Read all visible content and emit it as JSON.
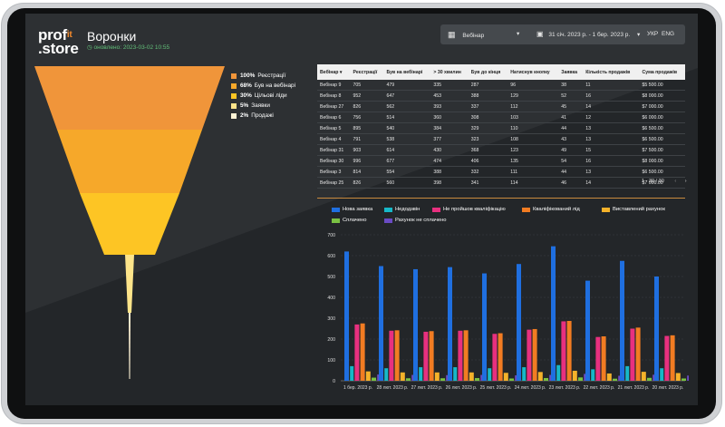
{
  "app": {
    "logo_line1": "prof",
    "logo_it": "it",
    "logo_line2": ".store",
    "title": "Воронки",
    "updated": "оновлено: 2023-03-02 10:55"
  },
  "filters": {
    "webinar_label": "Вебінар",
    "date_range": "31 січ. 2023 р. - 1 бер. 2023 р.",
    "lang_ukr": "УКР",
    "lang_eng": "ENG"
  },
  "funnel": {
    "stages": [
      {
        "percent": "100%",
        "label": "Реєстрації",
        "value": 100,
        "color": "#f0953a"
      },
      {
        "percent": "68%",
        "label": "Був на вебінарі",
        "value": 68,
        "color": "#f6a82a"
      },
      {
        "percent": "30%",
        "label": "Цільові ліди",
        "value": 30,
        "color": "#fdc524"
      },
      {
        "percent": "5%",
        "label": "Заявки",
        "value": 5,
        "color": "#fde48a"
      },
      {
        "percent": "2%",
        "label": "Продажі",
        "value": 2,
        "color": "#fff4d6"
      }
    ]
  },
  "table": {
    "headers": [
      "Вебінар",
      "Реєстрації",
      "Був на вебінарі",
      "> 30 хвилин",
      "Був до кінця",
      "Натиснув кнопку",
      "Заявка",
      "Кількість продажів",
      "Сума продажів"
    ],
    "rows": [
      [
        "Вебінар 9",
        "705",
        "479",
        "335",
        "287",
        "96",
        "38",
        "11",
        "$5 500.00"
      ],
      [
        "Вебінар 8",
        "952",
        "647",
        "453",
        "388",
        "129",
        "52",
        "16",
        "$8 000.00"
      ],
      [
        "Вебінар 27",
        "826",
        "562",
        "393",
        "337",
        "112",
        "45",
        "14",
        "$7 000.00"
      ],
      [
        "Вебінар 6",
        "756",
        "514",
        "360",
        "308",
        "103",
        "41",
        "12",
        "$6 000.00"
      ],
      [
        "Вебінар 5",
        "895",
        "540",
        "384",
        "329",
        "110",
        "44",
        "13",
        "$6 500.00"
      ],
      [
        "Вебінар 4",
        "791",
        "538",
        "377",
        "323",
        "108",
        "43",
        "13",
        "$6 500.00"
      ],
      [
        "Вебінар 31",
        "903",
        "614",
        "430",
        "368",
        "123",
        "49",
        "15",
        "$7 500.00"
      ],
      [
        "Вебінар 30",
        "996",
        "677",
        "474",
        "406",
        "135",
        "54",
        "16",
        "$8 000.00"
      ],
      [
        "Вебінар 3",
        "814",
        "554",
        "388",
        "332",
        "111",
        "44",
        "13",
        "$6 500.00"
      ],
      [
        "Вебінар 25",
        "826",
        "560",
        "398",
        "341",
        "114",
        "46",
        "14",
        "$7 000.00"
      ]
    ],
    "pagination": "1 - 30 / 30"
  },
  "chart_data": {
    "type": "bar",
    "title": "",
    "xlabel": "",
    "ylabel": "",
    "ylim": [
      0,
      700
    ],
    "yticks": [
      0,
      100,
      200,
      300,
      400,
      500,
      600,
      700
    ],
    "categories": [
      "1 бер. 2023 р.",
      "28 лют. 2023 р.",
      "27 лют. 2023 р.",
      "26 лют. 2023 р.",
      "25 лют. 2023 р.",
      "24 лют. 2023 р.",
      "23 лют. 2023 р.",
      "22 лют. 2023 р.",
      "21 лют. 2023 р.",
      "20 лют. 2023 р."
    ],
    "series": [
      {
        "name": "Нова заявка",
        "color": "#1f6fe0",
        "values": [
          620,
          550,
          535,
          545,
          515,
          560,
          645,
          480,
          575,
          500
        ]
      },
      {
        "name": "Недодзвін",
        "color": "#17b8c8",
        "values": [
          70,
          60,
          65,
          65,
          60,
          65,
          75,
          55,
          70,
          60
        ]
      },
      {
        "name": "Не пройшов кваліфікацію",
        "color": "#e8307f",
        "values": [
          270,
          240,
          235,
          240,
          225,
          245,
          285,
          210,
          250,
          215
        ]
      },
      {
        "name": "Кваліфікований лід",
        "color": "#f27c22",
        "values": [
          275,
          242,
          238,
          242,
          228,
          248,
          287,
          213,
          255,
          218
        ]
      },
      {
        "name": "Виставлений рахунок",
        "color": "#f5b22a",
        "values": [
          45,
          40,
          40,
          40,
          38,
          42,
          48,
          35,
          43,
          37
        ]
      },
      {
        "name": "Сплачено",
        "color": "#7ac143",
        "values": [
          15,
          12,
          12,
          13,
          11,
          13,
          16,
          10,
          14,
          11
        ]
      },
      {
        "name": "Рахунок не сплачено",
        "color": "#6a4bc4",
        "values": [
          30,
          28,
          27,
          28,
          26,
          28,
          33,
          24,
          29,
          25
        ]
      }
    ]
  }
}
